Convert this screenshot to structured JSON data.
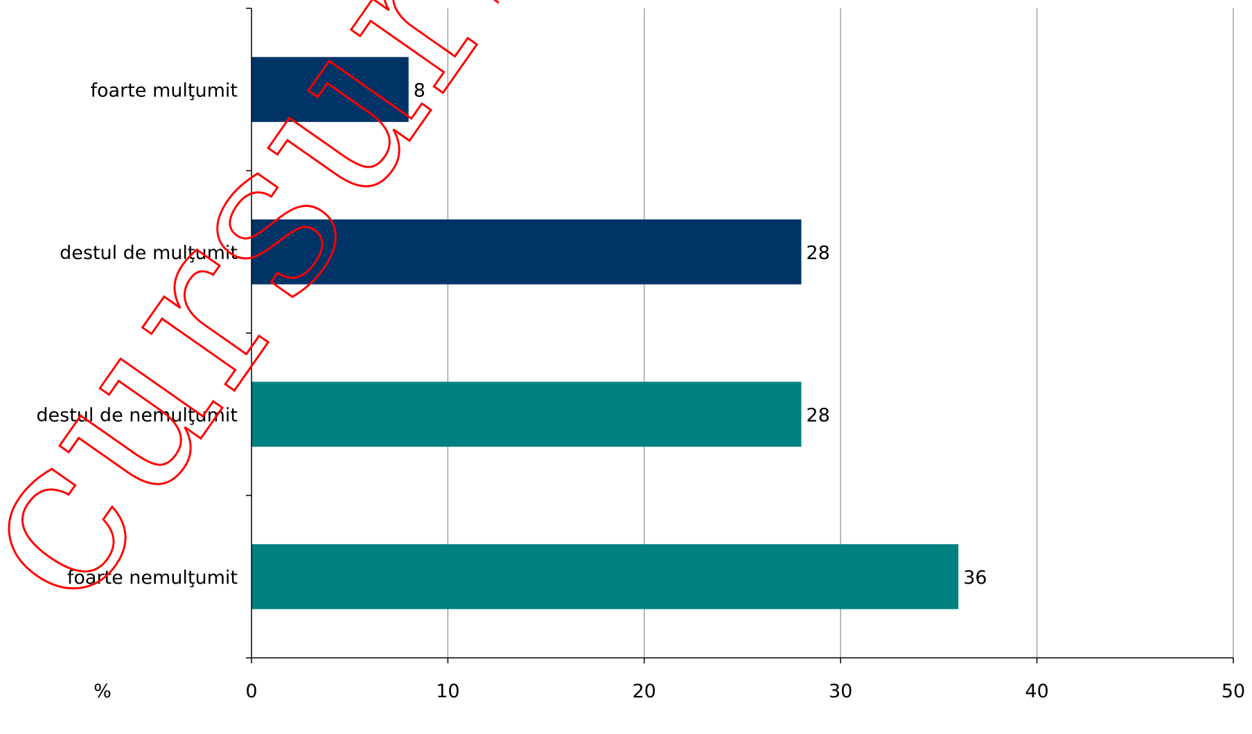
{
  "chart_data": {
    "type": "bar",
    "orientation": "horizontal",
    "categories": [
      "foarte mulţumit",
      "destul de mulţumit",
      "destul de nemulţumit",
      "foarte nemulţumit"
    ],
    "values": [
      8,
      28,
      28,
      36
    ],
    "data_labels": [
      "8",
      "28",
      "28",
      "36"
    ],
    "bar_colors": [
      "#003366",
      "#003366",
      "#008080",
      "#008080"
    ],
    "xlim": [
      0,
      50
    ],
    "xticks": [
      "0",
      "10",
      "20",
      "30",
      "40",
      "50"
    ],
    "unit_label": "%",
    "grid": "vertical",
    "legend": "none"
  },
  "watermark": {
    "text": "cursuri",
    "color": "#ff0000"
  }
}
